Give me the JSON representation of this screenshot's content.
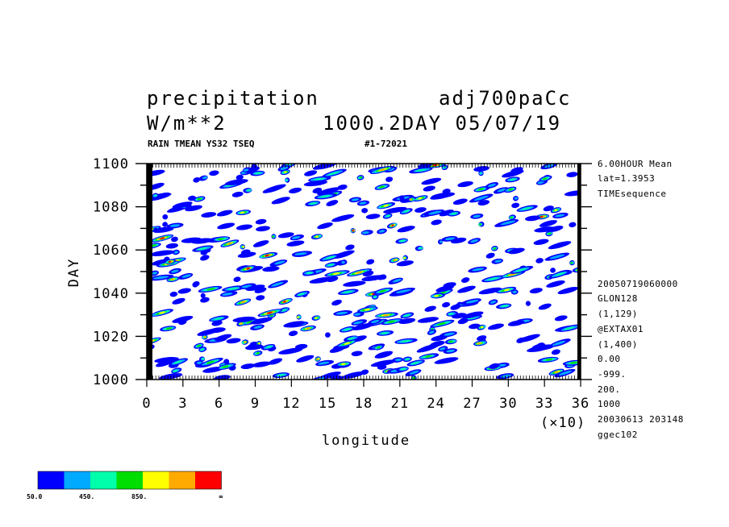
{
  "header": {
    "title_left": "precipitation",
    "title_right": "adj700paCc",
    "units": "W/m**2",
    "time_info": "1000.2DAY 05/07/19",
    "subtitle_left": "RAIN TMEAN YS32 TSEQ",
    "subtitle_right": "#1-72021"
  },
  "side_info": [
    "6.00HOUR Mean",
    "lat=1.3953",
    "TIMEsequence",
    "20050719060000",
    "GLON128",
    "(1,129)",
    "@EXTAX01",
    "(1,400)",
    "0.00",
    "-999.",
    "200.",
    "1000",
    "20030613 203148",
    "ggec102"
  ],
  "chart_data": {
    "type": "heatmap",
    "xlabel": "longitude",
    "ylabel": "DAY",
    "x_multiplier": "(×10)",
    "xlim": [
      0,
      36
    ],
    "ylim": [
      1000,
      1100
    ],
    "x_ticks": [
      "0",
      "3",
      "6",
      "9",
      "12",
      "15",
      "18",
      "21",
      "24",
      "27",
      "30",
      "33",
      "36"
    ],
    "y_ticks": [
      "1000",
      "1020",
      "1040",
      "1060",
      "1080",
      "1100"
    ],
    "contour_levels": [
      50,
      250,
      450,
      650,
      850,
      1050,
      1250
    ],
    "colors": [
      "#0000ff",
      "#00aaff",
      "#00ffaa",
      "#00dd00",
      "#ffff00",
      "#ffaa00",
      "#ff0000"
    ],
    "legend_labels": [
      "50.0",
      "450.",
      "850.",
      "∞"
    ],
    "grid": false
  }
}
